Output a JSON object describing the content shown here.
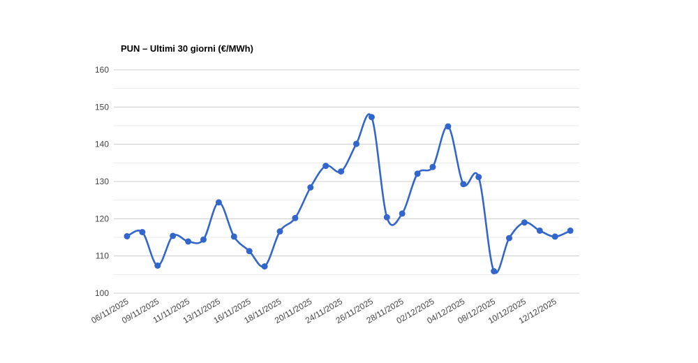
{
  "chart_data": {
    "type": "line",
    "title": "PUN – Ultimi 30 giorni (€/MWh)",
    "xlabel": "",
    "ylabel": "",
    "ylim": [
      100,
      160
    ],
    "y_ticks": [
      100,
      110,
      120,
      130,
      140,
      150,
      160
    ],
    "y_minor_ticks": [
      105,
      115,
      125,
      135,
      145,
      155
    ],
    "grid": true,
    "legend": "none",
    "smooth": true,
    "x_labels": [
      "06/11/2025",
      "",
      "09/11/2025",
      "",
      "11/11/2025",
      "",
      "13/11/2025",
      "",
      "16/11/2025",
      "",
      "18/11/2025",
      "",
      "20/11/2025",
      "",
      "24/11/2025",
      "",
      "26/11/2025",
      "",
      "28/11/2025",
      "",
      "02/12/2025",
      "",
      "04/12/2025",
      "",
      "08/12/2025",
      "",
      "10/12/2025",
      "",
      "12/12/2025",
      ""
    ],
    "series": [
      {
        "name": "PUN",
        "color": "#3366cc",
        "values": [
          115.3,
          116.4,
          107.4,
          115.4,
          113.9,
          114.4,
          124.4,
          115.2,
          111.3,
          107.2,
          116.6,
          120.2,
          128.4,
          134.2,
          132.7,
          140.1,
          147.3,
          120.4,
          121.4,
          132.1,
          133.9,
          144.8,
          129.3,
          131.2,
          105.9,
          114.8,
          119.0,
          116.8,
          115.2,
          116.8
        ]
      }
    ],
    "colors": {
      "line": "#3366cc",
      "point": "#3366cc",
      "grid_major": "#cccccc",
      "grid_minor": "#e9e9e9",
      "axis_text": "#444444",
      "title_text": "#000000",
      "background": "#ffffff"
    }
  }
}
